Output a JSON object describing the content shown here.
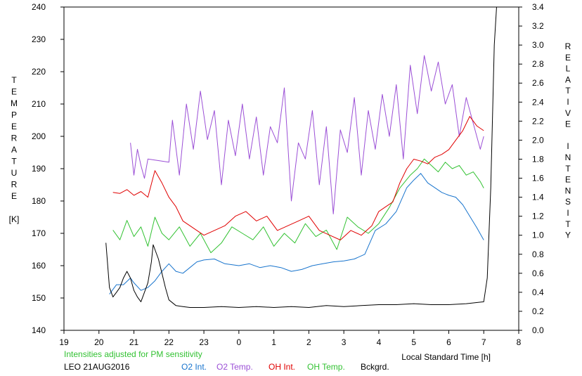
{
  "colors": {
    "o2_int": "#1874cd",
    "o2_temp": "#9b4fd6",
    "oh_int": "#e00000",
    "oh_temp": "#33c233",
    "bckgrd": "#000000",
    "note": "#33c233",
    "axis": "#000000"
  },
  "chart_data": {
    "type": "line",
    "xlabel": "Local Standard Time [h]",
    "ylabel_left": [
      "T",
      "E",
      "M",
      "P",
      "E",
      "R",
      "A",
      "T",
      "U",
      "R",
      "E",
      "",
      "[K]"
    ],
    "ylabel_right": [
      "R",
      "E",
      "L",
      "A",
      "T",
      "I",
      "V",
      "E",
      "",
      "I",
      "N",
      "T",
      "E",
      "N",
      "S",
      "I",
      "T",
      "Y"
    ],
    "note": "Intensities adjusted for PM sensitivity",
    "caption": "LEO 21AUG2016",
    "grid": false,
    "xlim": [
      19,
      32
    ],
    "ylim_left": [
      140,
      240
    ],
    "ylim_right": [
      0.0,
      3.4
    ],
    "x_ticks": [
      19,
      20,
      21,
      22,
      23,
      24,
      25,
      26,
      27,
      28,
      29,
      30,
      31,
      32
    ],
    "x_tick_labels": [
      "19",
      "20",
      "21",
      "22",
      "23",
      "0",
      "1",
      "2",
      "3",
      "4",
      "5",
      "6",
      "7",
      "8"
    ],
    "y_left_ticks": [
      140,
      150,
      160,
      170,
      180,
      190,
      200,
      210,
      220,
      230,
      240
    ],
    "y_right_ticks": [
      0.0,
      0.2,
      0.4,
      0.6,
      0.8,
      1.0,
      1.2,
      1.4,
      1.6,
      1.8,
      2.0,
      2.2,
      2.4,
      2.6,
      2.8,
      3.0,
      3.2,
      3.4
    ],
    "y_right_tick_labels": [
      "0.0",
      "0.2",
      "0.4",
      "0.6",
      "0.8",
      "1.0",
      "1.2",
      "1.4",
      "1.6",
      "1.8",
      "2.0",
      "2.2",
      "2.4",
      "2.6",
      "2.8",
      "3.0",
      "3.2",
      "3.4"
    ],
    "series": [
      {
        "name": "O2 Int.",
        "key": "o2_int",
        "axis": "right",
        "x": [
          20.3,
          20.5,
          20.7,
          20.9,
          21.0,
          21.2,
          21.4,
          21.6,
          21.8,
          22.0,
          22.2,
          22.4,
          22.6,
          22.8,
          23.0,
          23.3,
          23.6,
          24.0,
          24.3,
          24.6,
          24.9,
          25.2,
          25.5,
          25.8,
          26.1,
          26.4,
          26.7,
          27.0,
          27.3,
          27.6,
          27.9,
          28.2,
          28.5,
          28.8,
          29.0,
          29.2,
          29.4,
          29.6,
          29.8,
          30.0,
          30.2,
          30.4,
          30.6,
          30.8,
          31.0
        ],
        "y": [
          0.38,
          0.48,
          0.48,
          0.55,
          0.5,
          0.42,
          0.45,
          0.52,
          0.62,
          0.7,
          0.62,
          0.6,
          0.66,
          0.72,
          0.74,
          0.75,
          0.7,
          0.68,
          0.7,
          0.66,
          0.68,
          0.66,
          0.62,
          0.64,
          0.68,
          0.7,
          0.72,
          0.73,
          0.75,
          0.8,
          1.05,
          1.12,
          1.25,
          1.5,
          1.58,
          1.65,
          1.55,
          1.5,
          1.45,
          1.42,
          1.4,
          1.32,
          1.2,
          1.08,
          0.95
        ]
      },
      {
        "name": "O2 Temp.",
        "key": "o2_temp",
        "axis": "left",
        "x": [
          20.9,
          21.0,
          21.1,
          21.2,
          21.3,
          21.4,
          22.0,
          22.1,
          22.3,
          22.5,
          22.7,
          22.9,
          23.1,
          23.3,
          23.5,
          23.7,
          23.9,
          24.1,
          24.3,
          24.5,
          24.7,
          24.9,
          25.1,
          25.3,
          25.5,
          25.7,
          25.9,
          26.1,
          26.3,
          26.5,
          26.7,
          26.9,
          27.1,
          27.3,
          27.5,
          27.7,
          27.9,
          28.1,
          28.3,
          28.5,
          28.7,
          28.9,
          29.1,
          29.3,
          29.5,
          29.7,
          29.9,
          30.1,
          30.3,
          30.5,
          30.7,
          30.9,
          31.0
        ],
        "y": [
          198,
          188,
          196,
          191,
          187,
          193,
          192,
          205,
          188,
          210,
          196,
          214,
          199,
          208,
          185,
          205,
          194,
          210,
          193,
          206,
          188,
          203,
          198,
          215,
          180,
          198,
          193,
          208,
          185,
          203,
          176,
          202,
          195,
          212,
          188,
          208,
          196,
          213,
          200,
          216,
          193,
          222,
          207,
          225,
          214,
          223,
          210,
          216,
          200,
          212,
          204,
          196,
          200
        ]
      },
      {
        "name": "OH Int.",
        "key": "oh_int",
        "axis": "right",
        "x": [
          20.4,
          20.6,
          20.8,
          21.0,
          21.2,
          21.4,
          21.6,
          21.8,
          22.0,
          22.2,
          22.4,
          22.6,
          22.8,
          23.0,
          23.3,
          23.6,
          23.9,
          24.2,
          24.5,
          24.8,
          25.1,
          25.4,
          25.7,
          26.0,
          26.3,
          26.6,
          26.9,
          27.2,
          27.5,
          27.8,
          28.0,
          28.2,
          28.4,
          28.6,
          28.8,
          29.0,
          29.2,
          29.4,
          29.6,
          29.8,
          30.0,
          30.2,
          30.4,
          30.6,
          30.8,
          31.0
        ],
        "y": [
          1.45,
          1.44,
          1.48,
          1.42,
          1.46,
          1.4,
          1.68,
          1.55,
          1.4,
          1.3,
          1.15,
          1.1,
          1.05,
          1.0,
          1.05,
          1.1,
          1.2,
          1.25,
          1.15,
          1.2,
          1.05,
          1.1,
          1.15,
          1.2,
          1.05,
          1.0,
          0.95,
          1.05,
          1.0,
          1.1,
          1.25,
          1.3,
          1.35,
          1.55,
          1.7,
          1.8,
          1.78,
          1.75,
          1.82,
          1.85,
          1.9,
          2.0,
          2.1,
          2.25,
          2.15,
          2.1
        ]
      },
      {
        "name": "OH Temp.",
        "key": "oh_temp",
        "axis": "left",
        "x": [
          20.4,
          20.6,
          20.8,
          21.0,
          21.2,
          21.4,
          21.6,
          21.8,
          22.0,
          22.3,
          22.6,
          22.9,
          23.2,
          23.5,
          23.8,
          24.1,
          24.4,
          24.7,
          25.0,
          25.3,
          25.6,
          25.9,
          26.2,
          26.5,
          26.8,
          27.1,
          27.4,
          27.7,
          28.0,
          28.3,
          28.6,
          28.9,
          29.1,
          29.3,
          29.5,
          29.7,
          29.9,
          30.1,
          30.3,
          30.5,
          30.7,
          30.9,
          31.0
        ],
        "y": [
          171,
          168,
          174,
          169,
          172,
          166,
          175,
          170,
          168,
          172,
          166,
          170,
          164,
          167,
          172,
          170,
          168,
          172,
          166,
          170,
          167,
          173,
          169,
          171,
          165,
          175,
          172,
          170,
          173,
          178,
          184,
          188,
          190,
          193,
          191,
          189,
          192,
          190,
          191,
          188,
          189,
          186,
          184
        ]
      },
      {
        "name": "Bckgrd.",
        "key": "bckgrd",
        "axis": "right",
        "x": [
          20.2,
          20.3,
          20.4,
          20.5,
          20.6,
          20.7,
          20.8,
          20.9,
          21.0,
          21.1,
          21.2,
          21.3,
          21.4,
          21.5,
          21.55,
          21.6,
          21.7,
          21.8,
          21.9,
          22.0,
          22.2,
          22.4,
          22.6,
          22.8,
          23.0,
          23.5,
          24.0,
          24.5,
          25.0,
          25.5,
          26.0,
          26.5,
          27.0,
          27.5,
          28.0,
          28.5,
          29.0,
          29.5,
          30.0,
          30.5,
          31.0,
          31.1,
          31.2,
          31.3,
          31.4
        ],
        "y": [
          0.92,
          0.45,
          0.35,
          0.4,
          0.45,
          0.55,
          0.62,
          0.55,
          0.42,
          0.35,
          0.3,
          0.4,
          0.5,
          0.72,
          0.9,
          0.85,
          0.75,
          0.6,
          0.45,
          0.32,
          0.26,
          0.25,
          0.24,
          0.24,
          0.24,
          0.25,
          0.24,
          0.25,
          0.24,
          0.25,
          0.24,
          0.26,
          0.25,
          0.26,
          0.27,
          0.27,
          0.28,
          0.27,
          0.27,
          0.28,
          0.3,
          0.55,
          1.5,
          3.0,
          3.6
        ]
      }
    ]
  }
}
